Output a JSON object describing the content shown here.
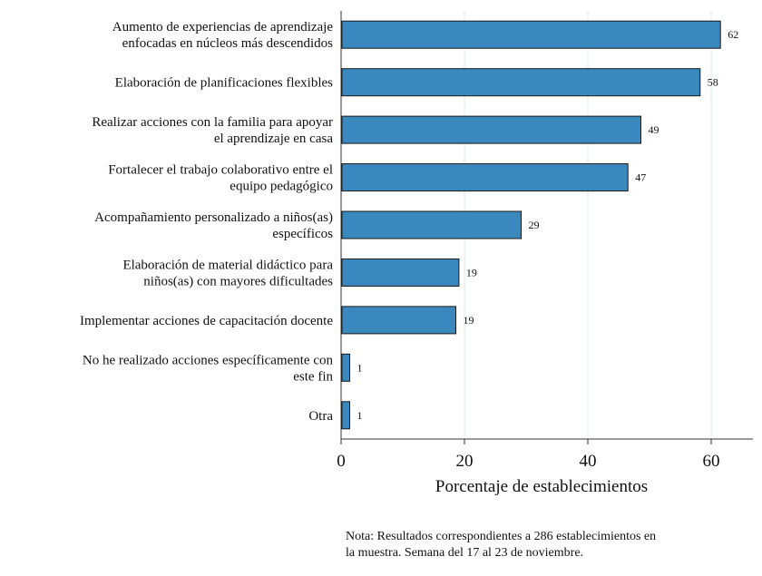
{
  "chart_data": {
    "type": "bar",
    "orientation": "horizontal",
    "categories": [
      [
        "Aumento de experiencias de aprendizaje",
        "enfocadas en núcleos más descendidos"
      ],
      [
        "Elaboración de planificaciones flexibles"
      ],
      [
        "Realizar acciones con la familia para apoyar",
        "el aprendizaje en casa"
      ],
      [
        "Fortalecer el trabajo colaborativo entre el",
        "equipo pedagógico"
      ],
      [
        "Acompañamiento personalizado a niños(as)",
        "específicos"
      ],
      [
        "Elaboración de material didáctico para",
        "niños(as) con mayores dificultades"
      ],
      [
        "Implementar acciones de capacitación docente"
      ],
      [
        "No he realizado acciones específicamente con",
        "este fin"
      ],
      [
        "Otra"
      ]
    ],
    "values": [
      62,
      58,
      49,
      47,
      29,
      19,
      19,
      1,
      1
    ],
    "bar_values": [
      61.5,
      58.2,
      48.6,
      46.5,
      29.2,
      19.1,
      18.6,
      1.4,
      1.4
    ],
    "value_labels": [
      "62",
      "58",
      "49",
      "47",
      "29",
      "19",
      "19",
      "1",
      "1"
    ],
    "xlabel": "Porcentaje de establecimientos",
    "ylabel": "",
    "xlim": [
      0,
      65
    ],
    "xticks": [
      0,
      20,
      40,
      60
    ],
    "xtick_labels": [
      "0",
      "20",
      "40",
      "60"
    ],
    "grid": "vertical lines",
    "colors": {
      "bar_fill": "#3a88bd",
      "bar_stroke": "#1a1a1a",
      "grid": "#dde7ee",
      "axis": "#333333"
    }
  },
  "note": {
    "line1": "Nota: Resultados correspondientes a 286 establecimientos en",
    "line2": "la muestra. Semana del 17 al 23 de noviembre."
  }
}
